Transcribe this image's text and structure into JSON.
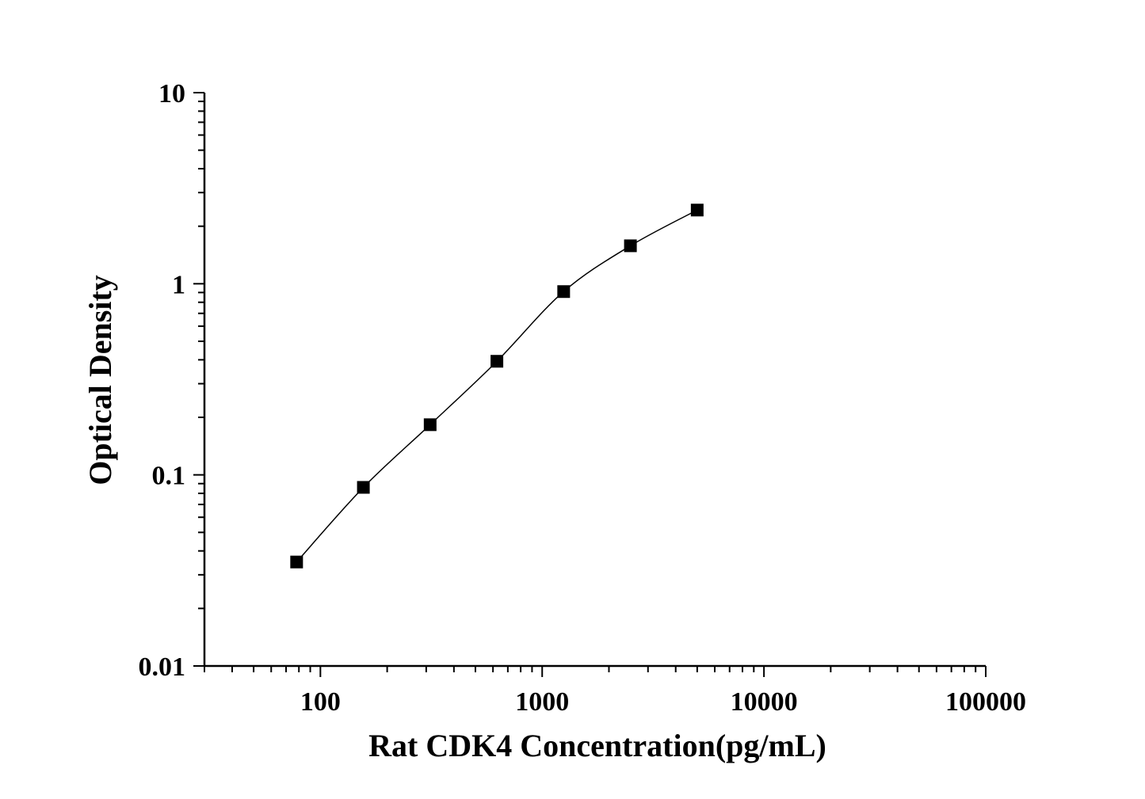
{
  "chart_data": {
    "type": "line",
    "title": "",
    "xlabel": "Rat CDK4 Concentration(pg/mL)",
    "ylabel": "Optical Density",
    "x_scale": "log",
    "y_scale": "log",
    "xlim": [
      30,
      100000
    ],
    "ylim": [
      0.01,
      10
    ],
    "x_ticks": [
      100,
      1000,
      10000,
      100000
    ],
    "x_tick_labels": [
      "100",
      "1000",
      "10000",
      "100000"
    ],
    "y_ticks": [
      0.01,
      0.1,
      1,
      10
    ],
    "y_tick_labels": [
      "0.01",
      "0.1",
      "1",
      "10"
    ],
    "grid": false,
    "marker": "square",
    "color": "#000000",
    "series": [
      {
        "x": [
          78.125,
          156.25,
          312.5,
          625,
          1250,
          2500,
          5000
        ],
        "y": [
          0.035,
          0.086,
          0.183,
          0.393,
          0.91,
          1.58,
          2.43
        ]
      }
    ]
  }
}
